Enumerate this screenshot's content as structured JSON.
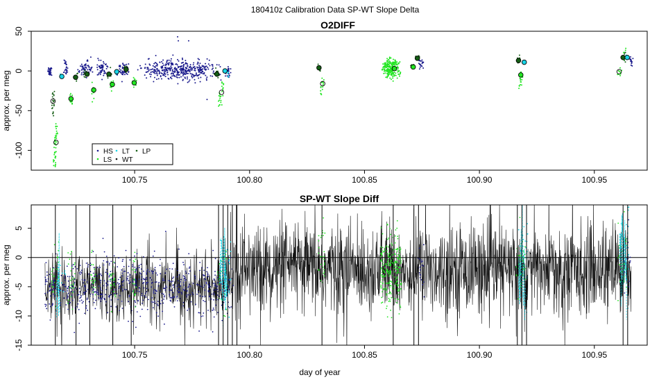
{
  "figure_title": "180410z   Calibration Data SP-WT Slope Delta",
  "colors": {
    "HS": "#1a1a8c",
    "LS": "#22e622",
    "LT": "#19d4e6",
    "WT": "#111111",
    "LP": "#155e15",
    "axis": "#000000",
    "zero_line": "#000000"
  },
  "chart_data": [
    {
      "type": "scatter",
      "title": "O2DIFF",
      "xlabel": "",
      "ylabel": "approx. per meg",
      "xlim": [
        100.705,
        100.973
      ],
      "ylim": [
        -125,
        50
      ],
      "xticks": [
        100.75,
        100.8,
        100.85,
        100.9,
        100.95
      ],
      "xtick_labels": [
        "100.75",
        "100.80",
        "100.85",
        "100.90",
        "100.95"
      ],
      "yticks": [
        -100,
        -50,
        0,
        50
      ],
      "ytick_labels": [
        "-100",
        "-50",
        "0",
        "50"
      ],
      "legend": {
        "position": "bottom-left",
        "entries": [
          {
            "key": "HS",
            "label": "HS"
          },
          {
            "key": "LS",
            "label": "LS"
          },
          {
            "key": "LT",
            "label": "LT"
          },
          {
            "key": "WT",
            "label": "WT"
          },
          {
            "key": "LP",
            "label": "LP"
          }
        ]
      },
      "clusters": [
        {
          "series": "HS",
          "x": [
            100.712,
            100.714
          ],
          "y_center": 0,
          "spread": 3,
          "n": 30
        },
        {
          "series": "LS",
          "x": [
            100.7145,
            100.7165
          ],
          "y_start": -120,
          "y_end": -70,
          "spread": 3,
          "n": 45
        },
        {
          "series": "LP",
          "x": [
            100.7135,
            100.7155
          ],
          "y_start": -55,
          "y_end": -25,
          "spread": 2,
          "n": 20
        },
        {
          "series": "HS",
          "x": [
            100.719,
            100.721
          ],
          "y_center": 3,
          "spread": 5,
          "n": 25
        },
        {
          "series": "LT",
          "x": [
            100.7175,
            100.7185
          ],
          "y_center": -7,
          "spread": 2,
          "n": 8
        },
        {
          "series": "LS",
          "x": [
            100.7215,
            100.7235
          ],
          "y_center": -35,
          "spread": 3,
          "n": 15
        },
        {
          "series": "LP",
          "x": [
            100.7235,
            100.7255
          ],
          "y_center": -8,
          "spread": 3,
          "n": 12
        },
        {
          "series": "HS",
          "x": [
            100.725,
            100.732
          ],
          "y_center": 3,
          "spread": 5,
          "n": 60
        },
        {
          "series": "LP",
          "x": [
            100.7275,
            100.7295
          ],
          "y_center": -4,
          "spread": 3,
          "n": 10
        },
        {
          "series": "LS",
          "x": [
            100.731,
            100.733
          ],
          "y_center": -25,
          "spread": 4,
          "n": 12
        },
        {
          "series": "HS",
          "x": [
            100.733,
            100.739
          ],
          "y_center": 2,
          "spread": 5,
          "n": 55
        },
        {
          "series": "LP",
          "x": [
            100.738,
            100.74
          ],
          "y_center": -4,
          "spread": 3,
          "n": 10
        },
        {
          "series": "LS",
          "x": [
            100.739,
            100.741
          ],
          "y_center": -18,
          "spread": 3,
          "n": 10
        },
        {
          "series": "LT",
          "x": [
            100.7415,
            100.7425
          ],
          "y_center": -2,
          "spread": 2,
          "n": 6
        },
        {
          "series": "HS",
          "x": [
            100.742,
            100.748
          ],
          "y_center": 1,
          "spread": 5,
          "n": 50
        },
        {
          "series": "LP",
          "x": [
            100.745,
            100.747
          ],
          "y_center": 2,
          "spread": 3,
          "n": 10
        },
        {
          "series": "LS",
          "x": [
            100.749,
            100.751
          ],
          "y_center": -15,
          "spread": 3,
          "n": 10
        },
        {
          "series": "HS",
          "x": [
            100.751,
            100.788
          ],
          "y_center": 1,
          "spread": 6,
          "n": 420
        },
        {
          "series": "LP",
          "x": [
            100.784,
            100.787
          ],
          "y_center": -4,
          "spread": 3,
          "n": 12
        },
        {
          "series": "LS",
          "x": [
            100.786,
            100.789
          ],
          "y_start": -45,
          "y_end": -15,
          "spread": 3,
          "n": 25
        },
        {
          "series": "LT",
          "x": [
            100.7885,
            100.7895
          ],
          "y_center": 0,
          "spread": 2,
          "n": 6
        },
        {
          "series": "HS",
          "x": [
            100.789,
            100.792
          ],
          "y_center": -1,
          "spread": 4,
          "n": 25
        },
        {
          "series": "LT",
          "x": [
            100.79,
            100.791
          ],
          "y_center": -2,
          "spread": 2,
          "n": 6
        },
        {
          "series": "LP",
          "x": [
            100.8295,
            100.8315
          ],
          "y_center": 4,
          "spread": 3,
          "n": 10
        },
        {
          "series": "LS",
          "x": [
            100.8305,
            100.8325
          ],
          "y_start": -30,
          "y_end": -10,
          "spread": 3,
          "n": 15
        },
        {
          "series": "LS",
          "x": [
            100.857,
            100.866
          ],
          "y_center": 3,
          "spread": 6,
          "n": 230
        },
        {
          "series": "LP",
          "x": [
            100.87,
            100.872
          ],
          "y_center": 5,
          "spread": 2,
          "n": 8
        },
        {
          "series": "LP",
          "x": [
            100.872,
            100.874
          ],
          "y_center": 17,
          "spread": 3,
          "n": 10
        },
        {
          "series": "HS",
          "x": [
            100.873,
            100.876
          ],
          "y_center": 8,
          "spread": 3,
          "n": 20
        },
        {
          "series": "LP",
          "x": [
            100.916,
            100.918
          ],
          "y_center": 13,
          "spread": 3,
          "n": 10
        },
        {
          "series": "LS",
          "x": [
            100.917,
            100.919
          ],
          "y_start": -22,
          "y_end": 0,
          "spread": 3,
          "n": 20
        },
        {
          "series": "LT",
          "x": [
            100.9185,
            100.9195
          ],
          "y_center": 11,
          "spread": 2,
          "n": 6
        },
        {
          "series": "LS",
          "x": [
            100.96,
            100.962
          ],
          "y_center": -1,
          "spread": 3,
          "n": 10
        },
        {
          "series": "LP",
          "x": [
            100.962,
            100.964
          ],
          "y_center": 18,
          "spread": 3,
          "n": 10
        },
        {
          "series": "LS",
          "x": [
            100.962,
            100.964
          ],
          "y_center": 22,
          "spread": 3,
          "n": 8
        },
        {
          "series": "LT",
          "x": [
            100.9635,
            100.9645
          ],
          "y_center": 17,
          "spread": 2,
          "n": 6
        },
        {
          "series": "HS",
          "x": [
            100.965,
            100.967
          ],
          "y_center": 12,
          "spread": 3,
          "n": 15
        }
      ],
      "outliers": [
        {
          "x": 100.7687,
          "y": 43
        },
        {
          "x": 100.769,
          "y": 38
        },
        {
          "x": 100.7735,
          "y": 38
        },
        {
          "x": 100.7815,
          "y": -36
        }
      ],
      "means": [
        {
          "x": 100.7145,
          "y": -38,
          "fill": "none"
        },
        {
          "x": 100.7158,
          "y": -90,
          "fill": "none"
        },
        {
          "x": 100.7183,
          "y": -7,
          "fill": "LT"
        },
        {
          "x": 100.7223,
          "y": -35,
          "fill": "LS"
        },
        {
          "x": 100.7243,
          "y": -8,
          "fill": "LP"
        },
        {
          "x": 100.7293,
          "y": -4,
          "fill": "LP"
        },
        {
          "x": 100.7322,
          "y": -24,
          "fill": "LS"
        },
        {
          "x": 100.7388,
          "y": -4,
          "fill": "LP"
        },
        {
          "x": 100.7403,
          "y": -17,
          "fill": "LS"
        },
        {
          "x": 100.7422,
          "y": -1,
          "fill": "LT"
        },
        {
          "x": 100.7463,
          "y": 2,
          "fill": "LP"
        },
        {
          "x": 100.7498,
          "y": -15,
          "fill": "LS"
        },
        {
          "x": 100.7858,
          "y": -4,
          "fill": "LP"
        },
        {
          "x": 100.7878,
          "y": -27,
          "fill": "none"
        },
        {
          "x": 100.7893,
          "y": 0,
          "fill": "LT"
        },
        {
          "x": 100.8302,
          "y": 4,
          "fill": "LP"
        },
        {
          "x": 100.8318,
          "y": -16,
          "fill": "none"
        },
        {
          "x": 100.863,
          "y": 3,
          "fill": "LS"
        },
        {
          "x": 100.8712,
          "y": 5,
          "fill": "LS"
        },
        {
          "x": 100.873,
          "y": 16,
          "fill": "LP"
        },
        {
          "x": 100.917,
          "y": 13,
          "fill": "LP"
        },
        {
          "x": 100.918,
          "y": -5,
          "fill": "LS"
        },
        {
          "x": 100.9195,
          "y": 11,
          "fill": "LT"
        },
        {
          "x": 100.9608,
          "y": -1,
          "fill": "none"
        },
        {
          "x": 100.9625,
          "y": 17,
          "fill": "LP"
        },
        {
          "x": 100.9643,
          "y": 17,
          "fill": "LT"
        }
      ]
    },
    {
      "type": "line",
      "title": "SP-WT Slope Diff",
      "xlabel": "day of year",
      "ylabel": "approx. per meg",
      "xlim": [
        100.705,
        100.973
      ],
      "ylim": [
        -15,
        9
      ],
      "xticks": [
        100.75,
        100.8,
        100.85,
        100.9,
        100.95
      ],
      "xtick_labels": [
        "100.75",
        "100.80",
        "100.85",
        "100.90",
        "100.95"
      ],
      "yticks": [
        -15,
        -10,
        -5,
        0,
        5
      ],
      "ytick_labels": [
        "-15",
        "-10",
        "-5",
        "0",
        "5"
      ],
      "reference_line_y": 0,
      "wt_segments": [
        {
          "x": [
            100.711,
            100.793
          ],
          "mean": -5,
          "sd": 2.8,
          "n": 520
        },
        {
          "x": [
            100.793,
            100.966
          ],
          "mean": -2,
          "sd": 3.8,
          "n": 1500
        }
      ],
      "overlays": [
        {
          "series": "HS",
          "x": [
            100.711,
            100.793
          ],
          "mean": -5,
          "sd": 2.5,
          "n": 700
        },
        {
          "series": "HS",
          "x": [
            100.873,
            100.876
          ],
          "mean": -1,
          "sd": 2.5,
          "n": 20
        },
        {
          "series": "HS",
          "x": [
            100.963,
            100.966
          ],
          "mean": -1,
          "sd": 2.5,
          "n": 20
        },
        {
          "series": "LS",
          "x": [
            100.714,
            100.717
          ],
          "mean": -3,
          "sd": 2.5,
          "n": 30
        },
        {
          "series": "LS",
          "x": [
            100.721,
            100.724
          ],
          "mean": -4,
          "sd": 2.5,
          "n": 25
        },
        {
          "series": "LS",
          "x": [
            100.731,
            100.733
          ],
          "mean": -4,
          "sd": 2.5,
          "n": 20
        },
        {
          "series": "LS",
          "x": [
            100.739,
            100.742
          ],
          "mean": -4,
          "sd": 2.5,
          "n": 25
        },
        {
          "series": "LS",
          "x": [
            100.749,
            100.751
          ],
          "mean": -4,
          "sd": 2.5,
          "n": 20
        },
        {
          "series": "LS",
          "x": [
            100.786,
            100.79
          ],
          "mean": -3,
          "sd": 3,
          "n": 30
        },
        {
          "series": "LS",
          "x": [
            100.83,
            100.833
          ],
          "mean": -1,
          "sd": 3,
          "n": 30
        },
        {
          "series": "LS",
          "x": [
            100.857,
            100.866
          ],
          "mean": -2,
          "sd": 3,
          "n": 240
        },
        {
          "series": "LS",
          "x": [
            100.916,
            100.92
          ],
          "mean": -1,
          "sd": 3,
          "n": 40
        },
        {
          "series": "LS",
          "x": [
            100.96,
            100.964
          ],
          "mean": 0,
          "sd": 3,
          "n": 30
        },
        {
          "series": "LT",
          "x": [
            100.716,
            100.72
          ],
          "mean": -4,
          "sd": 2.5,
          "n": 15
        },
        {
          "series": "LT",
          "x": [
            100.787,
            100.792
          ],
          "mean": -3,
          "sd": 3,
          "n": 30
        },
        {
          "series": "LT",
          "x": [
            100.917,
            100.921
          ],
          "mean": -1,
          "sd": 4,
          "n": 30
        },
        {
          "series": "LT",
          "x": [
            100.961,
            100.965
          ],
          "mean": 1,
          "sd": 4,
          "n": 30
        }
      ],
      "spikes": [
        100.7155,
        100.7245,
        100.7305,
        100.7405,
        100.7485,
        100.7865,
        100.7885,
        100.7905,
        100.7925,
        100.7945,
        100.8315,
        100.8625,
        100.8715,
        100.8735,
        100.9165,
        100.9185,
        100.9205,
        100.9625,
        100.9645
      ]
    }
  ]
}
